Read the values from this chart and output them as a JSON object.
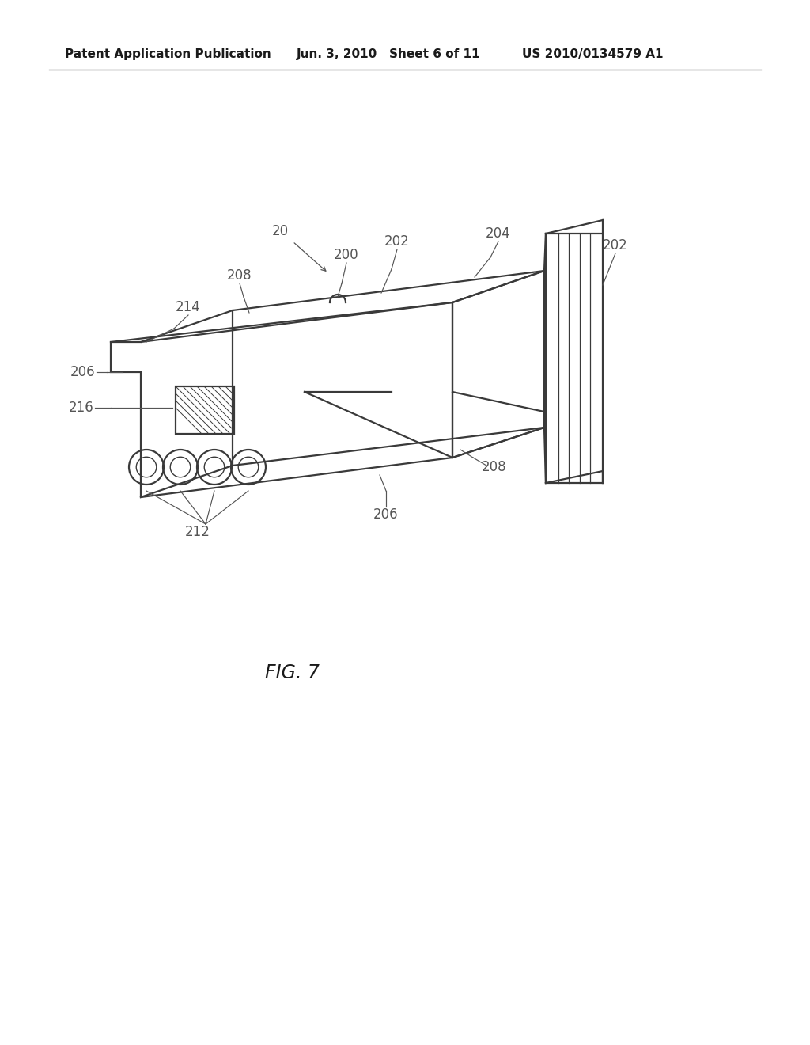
{
  "background_color": "#ffffff",
  "header_left": "Patent Application Publication",
  "header_center": "Jun. 3, 2010   Sheet 6 of 11",
  "header_right": "US 2010/0134579 A1",
  "figure_label": "FIG. 7",
  "line_color": "#3a3a3a",
  "ann_color": "#555555",
  "lw": 1.6,
  "ann_fs": 12,
  "header_fontsize": 11
}
